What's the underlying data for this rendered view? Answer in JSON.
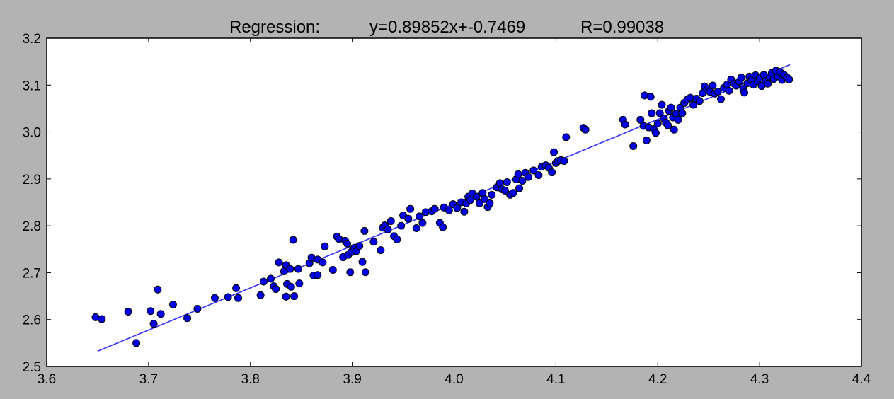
{
  "chart_data": {
    "type": "scatter",
    "title": {
      "label": "Regression:",
      "equation": "y=0.89852x+-0.7469",
      "r_value": "R=0.99038"
    },
    "xlabel": "",
    "ylabel": "",
    "xlim": [
      3.6,
      4.4
    ],
    "ylim": [
      2.5,
      3.2
    ],
    "x_ticks": [
      "3.6",
      "3.7",
      "3.8",
      "3.9",
      "4.0",
      "4.1",
      "4.2",
      "4.3",
      "4.4"
    ],
    "y_ticks": [
      "2.5",
      "2.6",
      "2.7",
      "2.8",
      "2.9",
      "3.0",
      "3.1",
      "3.2"
    ],
    "grid": false,
    "legend": "none",
    "fit": {
      "slope": 0.89852,
      "intercept": -0.7469,
      "x_start": 3.65,
      "x_end": 4.33
    },
    "colors": {
      "points": "#0000e6",
      "point_edge": "#000000",
      "fit_line": "#3333ff",
      "plot_bg": "#ffffff",
      "figure_bg": "#b3b3b3"
    },
    "points": [
      [
        3.648,
        2.605
      ],
      [
        3.654,
        2.601
      ],
      [
        3.68,
        2.617
      ],
      [
        3.688,
        2.55
      ],
      [
        3.702,
        2.618
      ],
      [
        3.705,
        2.591
      ],
      [
        3.709,
        2.664
      ],
      [
        3.712,
        2.612
      ],
      [
        3.724,
        2.632
      ],
      [
        3.738,
        2.603
      ],
      [
        3.748,
        2.623
      ],
      [
        3.765,
        2.646
      ],
      [
        3.778,
        2.648
      ],
      [
        3.786,
        2.667
      ],
      [
        3.788,
        2.646
      ],
      [
        3.81,
        2.652
      ],
      [
        3.813,
        2.681
      ],
      [
        3.82,
        2.687
      ],
      [
        3.823,
        2.671
      ],
      [
        3.825,
        2.665
      ],
      [
        3.828,
        2.722
      ],
      [
        3.833,
        2.703
      ],
      [
        3.835,
        2.716
      ],
      [
        3.836,
        2.676
      ],
      [
        3.835,
        2.649
      ],
      [
        3.839,
        2.708
      ],
      [
        3.84,
        2.67
      ],
      [
        3.842,
        2.77
      ],
      [
        3.843,
        2.65
      ],
      [
        3.848,
        2.677
      ],
      [
        3.847,
        2.708
      ],
      [
        3.858,
        2.72
      ],
      [
        3.86,
        2.732
      ],
      [
        3.862,
        2.694
      ],
      [
        3.866,
        2.695
      ],
      [
        3.866,
        2.728
      ],
      [
        3.871,
        2.722
      ],
      [
        3.873,
        2.756
      ],
      [
        3.881,
        2.706
      ],
      [
        3.885,
        2.777
      ],
      [
        3.887,
        2.772
      ],
      [
        3.891,
        2.733
      ],
      [
        3.893,
        2.768
      ],
      [
        3.895,
        2.762
      ],
      [
        3.896,
        2.738
      ],
      [
        3.898,
        2.701
      ],
      [
        3.899,
        2.744
      ],
      [
        3.902,
        2.753
      ],
      [
        3.904,
        2.746
      ],
      [
        3.907,
        2.757
      ],
      [
        3.91,
        2.723
      ],
      [
        3.912,
        2.789
      ],
      [
        3.913,
        2.701
      ],
      [
        3.921,
        2.766
      ],
      [
        3.928,
        2.748
      ],
      [
        3.93,
        2.796
      ],
      [
        3.932,
        2.801
      ],
      [
        3.935,
        2.792
      ],
      [
        3.938,
        2.81
      ],
      [
        3.941,
        2.778
      ],
      [
        3.944,
        2.771
      ],
      [
        3.948,
        2.8
      ],
      [
        3.95,
        2.822
      ],
      [
        3.955,
        2.815
      ],
      [
        3.957,
        2.836
      ],
      [
        3.963,
        2.795
      ],
      [
        3.966,
        2.82
      ],
      [
        3.969,
        2.806
      ],
      [
        3.972,
        2.829
      ],
      [
        3.978,
        2.831
      ],
      [
        3.981,
        2.836
      ],
      [
        3.986,
        2.806
      ],
      [
        3.989,
        2.797
      ],
      [
        3.99,
        2.839
      ],
      [
        3.995,
        2.833
      ],
      [
        3.999,
        2.846
      ],
      [
        4.003,
        2.838
      ],
      [
        4.007,
        2.85
      ],
      [
        4.01,
        2.83
      ],
      [
        4.012,
        2.848
      ],
      [
        4.014,
        2.862
      ],
      [
        4.016,
        2.855
      ],
      [
        4.018,
        2.869
      ],
      [
        4.022,
        2.862
      ],
      [
        4.025,
        2.848
      ],
      [
        4.028,
        2.87
      ],
      [
        4.03,
        2.857
      ],
      [
        4.033,
        2.84
      ],
      [
        4.035,
        2.848
      ],
      [
        4.037,
        2.866
      ],
      [
        4.042,
        2.882
      ],
      [
        4.045,
        2.891
      ],
      [
        4.047,
        2.878
      ],
      [
        4.05,
        2.875
      ],
      [
        4.052,
        2.893
      ],
      [
        4.055,
        2.866
      ],
      [
        4.058,
        2.87
      ],
      [
        4.061,
        2.899
      ],
      [
        4.063,
        2.91
      ],
      [
        4.064,
        2.88
      ],
      [
        4.067,
        2.896
      ],
      [
        4.07,
        2.913
      ],
      [
        4.073,
        2.904
      ],
      [
        4.078,
        2.918
      ],
      [
        4.083,
        2.908
      ],
      [
        4.086,
        2.926
      ],
      [
        4.09,
        2.929
      ],
      [
        4.093,
        2.924
      ],
      [
        4.096,
        2.914
      ],
      [
        4.098,
        2.957
      ],
      [
        4.1,
        2.934
      ],
      [
        4.102,
        2.938
      ],
      [
        4.105,
        2.94
      ],
      [
        4.108,
        2.938
      ],
      [
        4.11,
        2.989
      ],
      [
        4.127,
        3.009
      ],
      [
        4.129,
        3.005
      ],
      [
        4.166,
        3.026
      ],
      [
        4.168,
        3.016
      ],
      [
        4.176,
        2.97
      ],
      [
        4.183,
        3.026
      ],
      [
        4.186,
        3.013
      ],
      [
        4.187,
        3.078
      ],
      [
        4.189,
        2.982
      ],
      [
        4.191,
        3.01
      ],
      [
        4.193,
        3.075
      ],
      [
        4.194,
        3.04
      ],
      [
        4.196,
        3.006
      ],
      [
        4.198,
        2.998
      ],
      [
        4.2,
        3.018
      ],
      [
        4.202,
        3.04
      ],
      [
        4.204,
        3.058
      ],
      [
        4.206,
        3.029
      ],
      [
        4.208,
        3.02
      ],
      [
        4.21,
        3.014
      ],
      [
        4.211,
        3.045
      ],
      [
        4.213,
        3.052
      ],
      [
        4.215,
        3.031
      ],
      [
        4.216,
        3.005
      ],
      [
        4.218,
        3.039
      ],
      [
        4.22,
        3.026
      ],
      [
        4.222,
        3.052
      ],
      [
        4.224,
        3.04
      ],
      [
        4.226,
        3.062
      ],
      [
        4.229,
        3.069
      ],
      [
        4.232,
        3.073
      ],
      [
        4.235,
        3.058
      ],
      [
        4.238,
        3.071
      ],
      [
        4.241,
        3.066
      ],
      [
        4.244,
        3.083
      ],
      [
        4.246,
        3.097
      ],
      [
        4.249,
        3.091
      ],
      [
        4.251,
        3.086
      ],
      [
        4.254,
        3.099
      ],
      [
        4.256,
        3.082
      ],
      [
        4.259,
        3.086
      ],
      [
        4.262,
        3.07
      ],
      [
        4.265,
        3.094
      ],
      [
        4.268,
        3.101
      ],
      [
        4.27,
        3.088
      ],
      [
        4.272,
        3.112
      ],
      [
        4.275,
        3.103
      ],
      [
        4.277,
        3.099
      ],
      [
        4.28,
        3.108
      ],
      [
        4.282,
        3.116
      ],
      [
        4.284,
        3.092
      ],
      [
        4.285,
        3.084
      ],
      [
        4.288,
        3.104
      ],
      [
        4.29,
        3.118
      ],
      [
        4.292,
        3.111
      ],
      [
        4.294,
        3.101
      ],
      [
        4.296,
        3.121
      ],
      [
        4.298,
        3.108
      ],
      [
        4.3,
        3.115
      ],
      [
        4.302,
        3.098
      ],
      [
        4.304,
        3.122
      ],
      [
        4.306,
        3.109
      ],
      [
        4.308,
        3.103
      ],
      [
        4.31,
        3.118
      ],
      [
        4.312,
        3.126
      ],
      [
        4.314,
        3.113
      ],
      [
        4.316,
        3.131
      ],
      [
        4.318,
        3.119
      ],
      [
        4.32,
        3.128
      ],
      [
        4.322,
        3.111
      ],
      [
        4.324,
        3.122
      ],
      [
        4.327,
        3.116
      ],
      [
        4.329,
        3.112
      ]
    ]
  }
}
